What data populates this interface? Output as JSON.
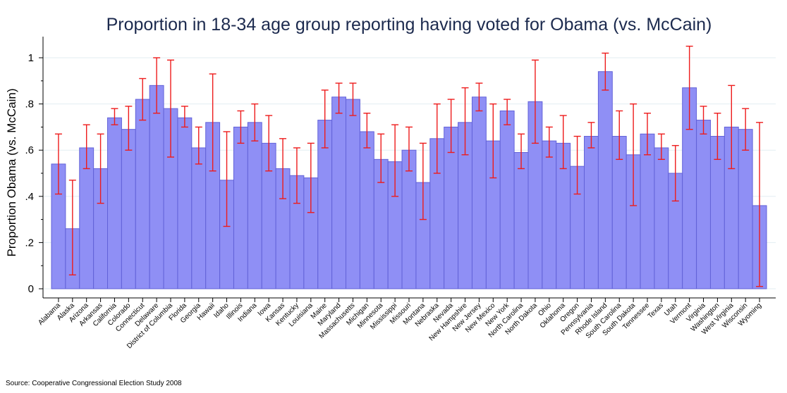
{
  "source_note": "Source: Cooperative Congressional Election Study 2008",
  "colors": {
    "bar_fill": "#8f8ff5",
    "bar_stroke": "#6262d8",
    "error_bar": "#ee1c1c",
    "title": "#1c2a4e",
    "grid": "#e3eef2"
  },
  "chart_data": {
    "type": "bar",
    "title": "Proportion in 18-34 age group reporting having voted for Obama (vs. McCain)",
    "xlabel": "",
    "ylabel": "Proportion Obama (vs. McCain)",
    "ylim": [
      0,
      1.07
    ],
    "yticks": [
      0,
      0.2,
      0.4,
      0.6,
      0.8,
      1
    ],
    "ytick_labels": [
      "0",
      ".2",
      ".4",
      ".6",
      ".8",
      "1"
    ],
    "grid": true,
    "error_bars": true,
    "categories": [
      "Alabama",
      "Alaska",
      "Arizona",
      "Arkansas",
      "California",
      "Colorado",
      "Connecticut",
      "Delaware",
      "District of Columbia",
      "Florida",
      "Georgia",
      "Hawaii",
      "Idaho",
      "Illinois",
      "Indiana",
      "Iowa",
      "Kansas",
      "Kentucky",
      "Louisiana",
      "Maine",
      "Maryland",
      "Massachusetts",
      "Michigan",
      "Minnesota",
      "Mississippi",
      "Missouri",
      "Montana",
      "Nebraska",
      "Nevada",
      "New Hampshire",
      "New Jersey",
      "New Mexico",
      "New York",
      "North Carolina",
      "North Dakota",
      "Ohio",
      "Oklahoma",
      "Oregon",
      "Pennsylvania",
      "Rhode Island",
      "South Carolina",
      "South Dakota",
      "Tennessee",
      "Texas",
      "Utah",
      "Vermont",
      "Virginia",
      "Washington",
      "West Virginia",
      "Wisconsin",
      "Wyoming"
    ],
    "values": [
      0.54,
      0.26,
      0.61,
      0.52,
      0.74,
      0.69,
      0.82,
      0.88,
      0.78,
      0.74,
      0.61,
      0.72,
      0.47,
      0.7,
      0.72,
      0.63,
      0.52,
      0.49,
      0.48,
      0.73,
      0.83,
      0.82,
      0.68,
      0.56,
      0.55,
      0.6,
      0.46,
      0.65,
      0.7,
      0.72,
      0.83,
      0.64,
      0.77,
      0.59,
      0.81,
      0.64,
      0.63,
      0.53,
      0.66,
      0.94,
      0.66,
      0.58,
      0.67,
      0.61,
      0.5,
      0.87,
      0.73,
      0.66,
      0.7,
      0.69,
      0.36
    ],
    "ci_low": [
      0.41,
      0.06,
      0.52,
      0.37,
      0.71,
      0.6,
      0.73,
      0.76,
      0.57,
      0.7,
      0.54,
      0.51,
      0.27,
      0.63,
      0.64,
      0.51,
      0.39,
      0.37,
      0.33,
      0.61,
      0.76,
      0.75,
      0.61,
      0.46,
      0.4,
      0.51,
      0.3,
      0.5,
      0.59,
      0.58,
      0.77,
      0.48,
      0.71,
      0.52,
      0.63,
      0.57,
      0.52,
      0.41,
      0.61,
      0.86,
      0.56,
      0.36,
      0.58,
      0.56,
      0.38,
      0.69,
      0.67,
      0.56,
      0.52,
      0.6,
      0.01
    ],
    "ci_high": [
      0.67,
      0.47,
      0.71,
      0.67,
      0.78,
      0.79,
      0.91,
      1.0,
      0.99,
      0.79,
      0.7,
      0.93,
      0.68,
      0.77,
      0.8,
      0.75,
      0.65,
      0.61,
      0.63,
      0.86,
      0.89,
      0.89,
      0.76,
      0.67,
      0.71,
      0.7,
      0.63,
      0.8,
      0.82,
      0.87,
      0.89,
      0.8,
      0.82,
      0.67,
      0.99,
      0.7,
      0.75,
      0.66,
      0.72,
      1.02,
      0.77,
      0.8,
      0.76,
      0.67,
      0.62,
      1.05,
      0.79,
      0.76,
      0.88,
      0.78,
      0.72
    ]
  }
}
